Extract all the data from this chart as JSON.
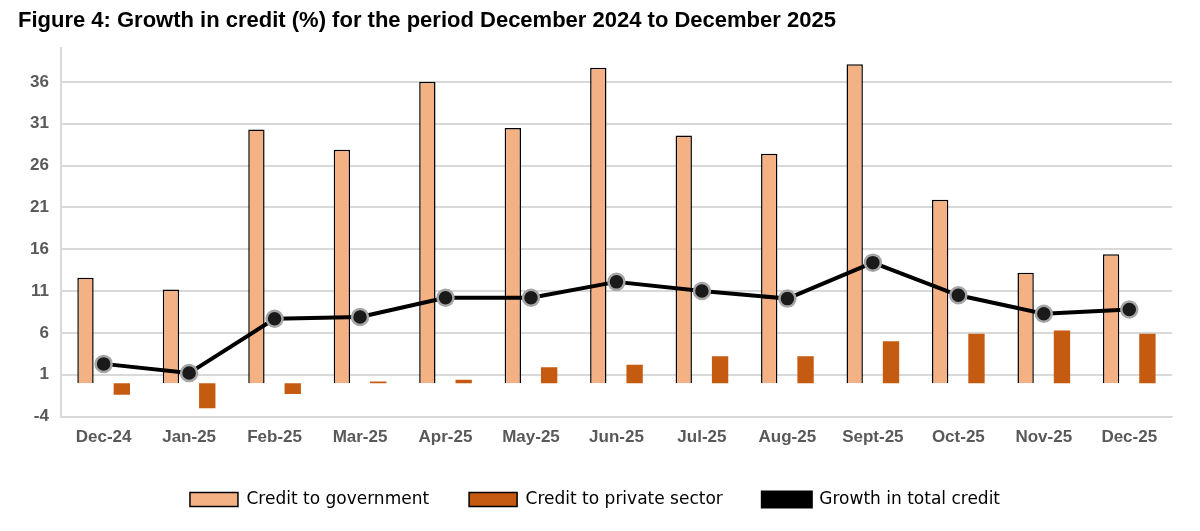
{
  "chart_data": {
    "type": "bar",
    "title": "Figure 4: Growth in credit (%) for the period December 2024 to December 2025",
    "categories": [
      "Dec-24",
      "Jan-25",
      "Feb-25",
      "Mar-25",
      "Apr-25",
      "May-25",
      "Jun-25",
      "Jul-25",
      "Aug-25",
      "Sept-25",
      "Oct-25",
      "Nov-25",
      "Dec-25"
    ],
    "series": [
      {
        "name": "Credit to government",
        "color": "#f4b183",
        "values": [
          12.6,
          11.2,
          30.3,
          27.9,
          36.0,
          30.5,
          37.7,
          29.6,
          27.4,
          38.1,
          21.9,
          13.2,
          15.4
        ]
      },
      {
        "name": "Credit to private sector",
        "color": "#c55a11",
        "values": [
          -1.4,
          -3.0,
          -1.3,
          0.2,
          0.4,
          1.9,
          2.2,
          3.2,
          3.2,
          5.0,
          5.9,
          6.3,
          5.9
        ]
      },
      {
        "name": "Growth in total credit",
        "type": "line",
        "color": "#000000",
        "marker": "circle",
        "values": [
          2.3,
          1.2,
          7.7,
          7.9,
          10.2,
          10.2,
          12.1,
          11.0,
          10.1,
          14.4,
          10.5,
          8.3,
          8.8
        ]
      }
    ],
    "ylim": [
      -4,
      40
    ],
    "yticks": [
      -4,
      1,
      6,
      11,
      16,
      21,
      26,
      31,
      36
    ],
    "grid": "y",
    "legend": "bottom"
  }
}
